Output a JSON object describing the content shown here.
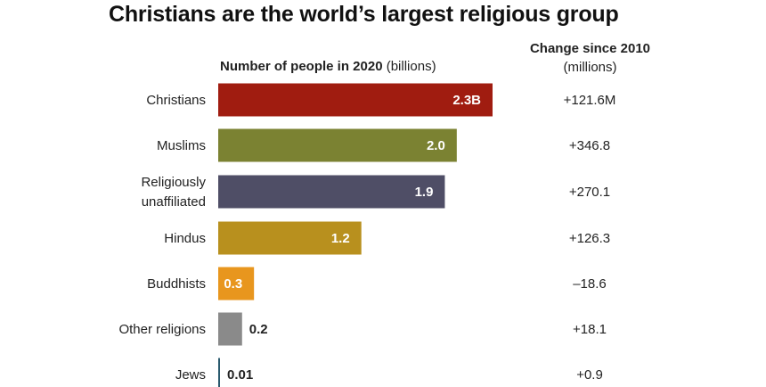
{
  "header": {
    "title": "Christians are the world’s largest religious group",
    "bar_heading_bold": "Number of people in 2020",
    "bar_heading_unit": "(billions)",
    "change_heading": "Change since 2010",
    "change_unit": "(millions)"
  },
  "chart_data": {
    "type": "bar",
    "orientation": "horizontal",
    "title": "Christians are the world’s largest religious group",
    "categories": [
      "Christians",
      "Muslims",
      "Religiously unaffiliated",
      "Hindus",
      "Buddhists",
      "Other religions",
      "Jews"
    ],
    "values": [
      2.3,
      2.0,
      1.9,
      1.2,
      0.3,
      0.2,
      0.01
    ],
    "value_labels": [
      "2.3B",
      "2.0",
      "1.9",
      "1.2",
      "0.3",
      "0.2",
      "0.01"
    ],
    "change_since_2010": [
      "+121.6M",
      "+346.8",
      "+270.1",
      "+126.3",
      "–18.6",
      "+18.1",
      "+0.9"
    ],
    "colors": [
      "#a01c10",
      "#7b8232",
      "#4f4e66",
      "#b8901e",
      "#e8961e",
      "#8a8a8a",
      "#2a5a6e"
    ],
    "xlim": [
      0,
      2.3
    ],
    "grid": false,
    "legend": "none"
  }
}
